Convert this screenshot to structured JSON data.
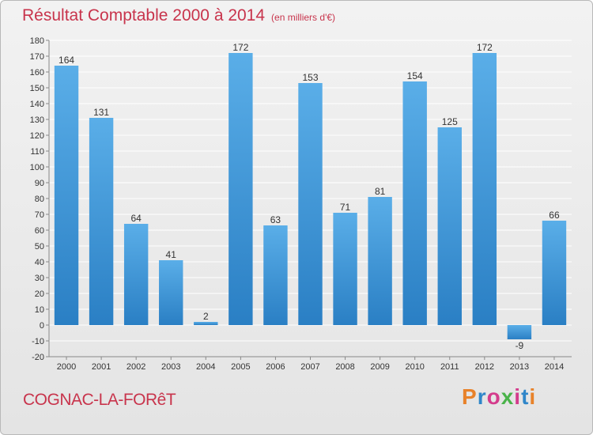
{
  "title": "Résultat Comptable 2000 à 2014",
  "subtitle": "(en milliers d'€)",
  "commune": "COGNAC-LA-FORêT",
  "logo_text": "Proxiti",
  "logo_colors": [
    "#e8822a",
    "#2f86c9",
    "#d43c8c",
    "#4ab34a",
    "#d43c8c",
    "#2f86c9",
    "#e8822a"
  ],
  "colors": {
    "bar_top": "#5aaee8",
    "bar_bottom": "#2a7fc4",
    "title": "#c8344c",
    "grid": "#ffffff",
    "axis": "#888888"
  },
  "chart_data": {
    "type": "bar",
    "categories": [
      "2000",
      "2001",
      "2002",
      "2003",
      "2004",
      "2005",
      "2006",
      "2007",
      "2008",
      "2009",
      "2010",
      "2011",
      "2012",
      "2013",
      "2014"
    ],
    "values": [
      164,
      131,
      64,
      41,
      2,
      172,
      63,
      153,
      71,
      81,
      154,
      125,
      172,
      -9,
      66
    ],
    "ylim": [
      -20,
      180
    ],
    "yticks": [
      -20,
      -10,
      0,
      10,
      20,
      30,
      40,
      50,
      60,
      70,
      80,
      90,
      100,
      110,
      120,
      130,
      140,
      150,
      160,
      170,
      180
    ],
    "grid": true,
    "title": "Résultat Comptable 2000 à 2014",
    "xlabel": "",
    "ylabel": ""
  }
}
